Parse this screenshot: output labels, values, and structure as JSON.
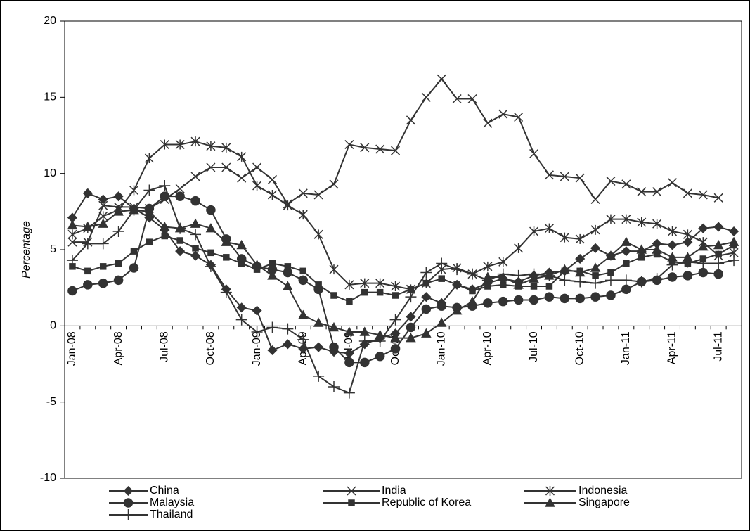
{
  "chart_data": {
    "type": "line",
    "y_label": "Percentage",
    "categories": [
      "Jan-08",
      null,
      null,
      "Apr-08",
      null,
      null,
      "Jul-08",
      null,
      null,
      "Oct-08",
      null,
      null,
      "Jan-09",
      null,
      null,
      "Apr-09",
      null,
      null,
      "Jul-09",
      null,
      null,
      "Oct-09",
      null,
      null,
      "Jan-10",
      null,
      null,
      "Apr-10",
      null,
      null,
      "Jul-10",
      null,
      null,
      "Oct-10",
      null,
      null,
      "Jan-11",
      null,
      null,
      "Apr-11",
      null,
      null,
      "Jul-11",
      null
    ],
    "ylim": [
      -10,
      20
    ],
    "yticks": [
      -10,
      -5,
      0,
      5,
      10,
      15,
      20
    ],
    "series": [
      {
        "name": "China",
        "color": "#333333",
        "marker": "diamond",
        "values": [
          7.1,
          8.7,
          8.3,
          8.5,
          7.7,
          7.1,
          6.3,
          4.9,
          4.6,
          4.0,
          2.4,
          1.2,
          1.0,
          -1.6,
          -1.2,
          -1.5,
          -1.4,
          -1.7,
          -1.8,
          -1.2,
          -0.8,
          -0.5,
          0.6,
          1.9,
          1.5,
          2.7,
          2.4,
          2.8,
          3.1,
          2.9,
          3.3,
          3.5,
          3.6,
          4.4,
          5.1,
          4.6,
          4.9,
          4.9,
          5.4,
          5.3,
          5.5,
          6.4,
          6.5,
          6.2
        ]
      },
      {
        "name": "India",
        "color": "#333333",
        "marker": "x",
        "values": [
          5.5,
          5.5,
          7.9,
          7.8,
          7.8,
          7.7,
          8.3,
          9.0,
          9.8,
          10.4,
          10.4,
          9.7,
          10.4,
          9.6,
          8.0,
          8.7,
          8.6,
          9.3,
          11.9,
          11.7,
          11.6,
          11.5,
          13.5,
          15.0,
          16.2,
          14.9,
          14.9,
          13.3,
          13.9,
          13.7,
          11.3,
          9.9,
          9.8,
          9.7,
          8.3,
          9.5,
          9.3,
          8.8,
          8.8,
          9.4,
          8.7,
          8.6,
          8.4,
          null
        ]
      },
      {
        "name": "Indonesia",
        "color": "#333333",
        "marker": "asterisk",
        "values": [
          6.0,
          6.4,
          7.2,
          7.6,
          8.9,
          11.0,
          11.9,
          11.9,
          12.1,
          11.8,
          11.7,
          11.1,
          9.2,
          8.6,
          7.9,
          7.3,
          6.0,
          3.7,
          2.7,
          2.8,
          2.8,
          2.6,
          2.4,
          2.8,
          3.7,
          3.8,
          3.4,
          3.9,
          4.2,
          5.1,
          6.2,
          6.4,
          5.8,
          5.7,
          6.3,
          7.0,
          7.0,
          6.8,
          6.7,
          6.2,
          6.0,
          5.5,
          4.6,
          4.8
        ]
      },
      {
        "name": "Malaysia",
        "color": "#333333",
        "marker": "circle",
        "values": [
          2.3,
          2.7,
          2.8,
          3.0,
          3.8,
          7.7,
          8.5,
          8.5,
          8.2,
          7.6,
          5.7,
          4.4,
          3.9,
          3.7,
          3.5,
          3.0,
          2.4,
          -1.4,
          -2.4,
          -2.4,
          -2.0,
          -1.5,
          -0.1,
          1.1,
          1.3,
          1.2,
          1.3,
          1.5,
          1.6,
          1.7,
          1.7,
          1.9,
          1.8,
          1.8,
          1.9,
          2.0,
          2.4,
          2.9,
          3.0,
          3.2,
          3.3,
          3.5,
          3.4,
          null
        ]
      },
      {
        "name": "Republic of Korea",
        "color": "#333333",
        "marker": "square",
        "values": [
          3.9,
          3.6,
          3.9,
          4.1,
          4.9,
          5.5,
          5.9,
          5.6,
          5.1,
          4.8,
          4.5,
          4.1,
          3.7,
          4.1,
          3.9,
          3.6,
          2.7,
          2.0,
          1.6,
          2.2,
          2.2,
          2.0,
          2.4,
          2.8,
          3.1,
          2.7,
          2.3,
          2.6,
          2.7,
          2.6,
          2.6,
          2.6,
          3.6,
          3.6,
          3.3,
          3.5,
          4.1,
          4.5,
          4.7,
          4.2,
          4.1,
          4.4,
          4.7,
          5.3
        ]
      },
      {
        "name": "Singapore",
        "color": "#333333",
        "marker": "triangle",
        "values": [
          6.6,
          6.5,
          6.7,
          7.5,
          7.6,
          7.5,
          6.5,
          6.4,
          6.7,
          6.4,
          5.5,
          5.3,
          4.0,
          3.3,
          2.6,
          0.7,
          0.2,
          -0.1,
          -0.4,
          -0.4,
          -0.6,
          -0.8,
          -0.8,
          -0.5,
          0.2,
          1.0,
          1.6,
          3.2,
          3.2,
          2.7,
          3.1,
          3.3,
          3.7,
          3.5,
          3.8,
          4.6,
          5.5,
          5.0,
          5.0,
          4.5,
          4.5,
          5.2,
          5.3,
          5.5
        ]
      },
      {
        "name": "Thailand",
        "color": "#333333",
        "marker": "plus",
        "values": [
          4.3,
          5.4,
          5.4,
          6.2,
          7.6,
          8.9,
          9.2,
          6.4,
          6.0,
          3.9,
          2.2,
          0.4,
          -0.4,
          -0.1,
          -0.2,
          -0.9,
          -3.3,
          -4.0,
          -4.4,
          -1.0,
          -1.0,
          0.4,
          1.9,
          3.5,
          4.1,
          3.7,
          3.4,
          3.0,
          3.4,
          3.3,
          3.4,
          3.3,
          3.0,
          2.9,
          2.8,
          3.0,
          3.0,
          2.9,
          3.1,
          4.0,
          4.2,
          4.1,
          4.1,
          4.3
        ]
      }
    ]
  }
}
